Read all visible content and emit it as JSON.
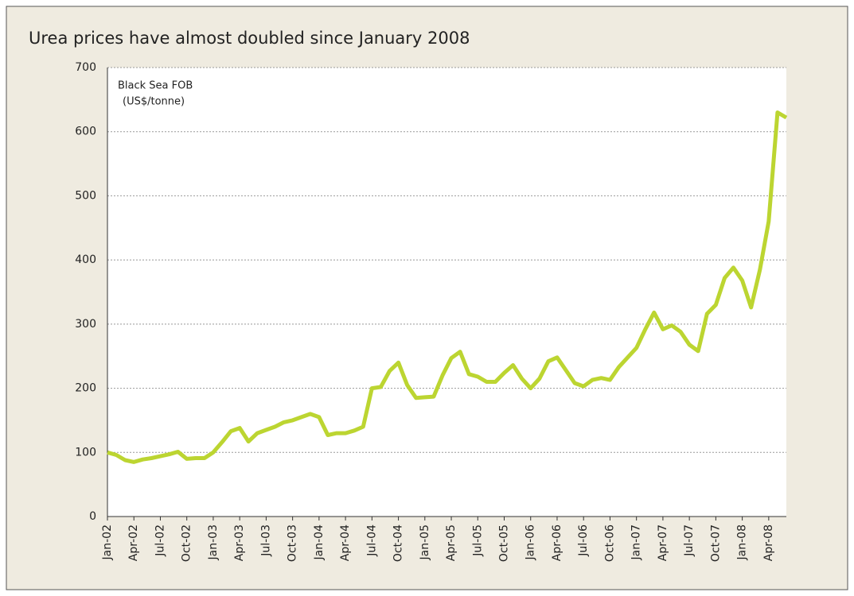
{
  "chart_data": {
    "type": "line",
    "title": "Urea prices have almost doubled since January 2008",
    "annotation": [
      "Black Sea FOB",
      "(US$/tonne)"
    ],
    "categories": [
      "Jan-02",
      null,
      null,
      "Apr-02",
      null,
      null,
      "Jul-02",
      null,
      null,
      "Oct-02",
      null,
      null,
      "Jan-03",
      null,
      null,
      "Apr-03",
      null,
      null,
      "Jul-03",
      null,
      null,
      "Oct-03",
      null,
      null,
      "Jan-04",
      null,
      null,
      "Apr-04",
      null,
      null,
      "Jul-04",
      null,
      null,
      "Oct-04",
      null,
      null,
      "Jan-05",
      null,
      null,
      "Apr-05",
      null,
      null,
      "Jul-05",
      null,
      null,
      "Oct-05",
      null,
      null,
      "Jan-06",
      null,
      null,
      "Apr-06",
      null,
      null,
      "Jul-06",
      null,
      null,
      "Oct-06",
      null,
      null,
      "Jan-07",
      null,
      null,
      "Apr-07",
      null,
      null,
      "Jul-07",
      null,
      null,
      "Oct-07",
      null,
      null,
      "Jan-08",
      null,
      null,
      "Apr-08",
      null,
      null
    ],
    "values": [
      100,
      96,
      88,
      85,
      89,
      91,
      94,
      97,
      101,
      90,
      91,
      91,
      100,
      116,
      133,
      138,
      117,
      130,
      135,
      140,
      147,
      150,
      155,
      160,
      155,
      127,
      130,
      130,
      134,
      140,
      200,
      202,
      227,
      240,
      205,
      185,
      186,
      187,
      220,
      247,
      257,
      222,
      218,
      210,
      210,
      224,
      236,
      215,
      200,
      215,
      242,
      248,
      228,
      208,
      203,
      213,
      216,
      213,
      233,
      248,
      263,
      292,
      318,
      292,
      298,
      288,
      268,
      258,
      316,
      330,
      372,
      388,
      368,
      326,
      385,
      460,
      630,
      622
    ],
    "color": "#bcd531",
    "ylim": [
      0,
      700
    ],
    "yticks": [
      0,
      100,
      200,
      300,
      400,
      500,
      600,
      700
    ],
    "grid": true
  }
}
